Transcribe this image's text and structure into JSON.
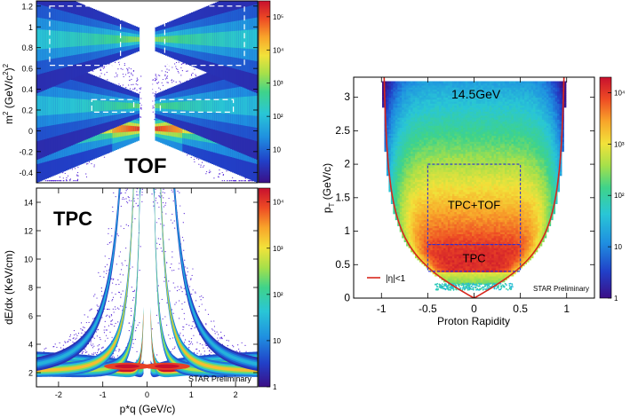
{
  "chart_data": [
    {
      "id": "tof",
      "type": "heatmap",
      "title": "",
      "panel_label": "TOF",
      "xlabel": "",
      "ylabel": "m² (GeV/c²)²",
      "ylabel_main": "m",
      "ylabel_sup": "2",
      "ylabel_unit": " (GeV/c",
      "ylabel_unit_sup": "2",
      "ylabel_close": ")",
      "ylabel_close_sup": "2",
      "xlim": [
        -2.5,
        2.5
      ],
      "ylim": [
        -0.5,
        1.25
      ],
      "yticks": [
        {
          "value": -0.4,
          "label": "-0.4"
        },
        {
          "value": -0.2,
          "label": "-0.2"
        },
        {
          "value": 0,
          "label": "0"
        },
        {
          "value": 0.2,
          "label": "0.2"
        },
        {
          "value": 0.4,
          "label": "0.4"
        },
        {
          "value": 0.6,
          "label": "0.6"
        },
        {
          "value": 0.8,
          "label": "0.8"
        },
        {
          "value": 1.0,
          "label": "1"
        },
        {
          "value": 1.2,
          "label": "1.2"
        }
      ],
      "bands": [
        {
          "name": "pion",
          "m2": 0.02,
          "intensity": 1.0
        },
        {
          "name": "kaon",
          "m2": 0.24,
          "intensity": 0.65
        },
        {
          "name": "proton",
          "m2": 0.88,
          "intensity": 0.7
        }
      ],
      "selection_boxes": [
        {
          "x": [
            -2.2,
            -0.6
          ],
          "y": [
            0.63,
            1.2
          ]
        },
        {
          "x": [
            0.4,
            2.2
          ],
          "y": [
            0.63,
            1.2
          ]
        },
        {
          "x": [
            -1.25,
            -0.3
          ],
          "y": [
            0.18,
            0.3
          ]
        },
        {
          "x": [
            0.3,
            1.95
          ],
          "y": [
            0.18,
            0.3
          ]
        }
      ],
      "colorbar": {
        "scale": "log",
        "ticks": [
          {
            "value": 10,
            "label": "10"
          },
          {
            "value": 100,
            "label": "10²"
          },
          {
            "value": 1000,
            "label": "10³"
          },
          {
            "value": 10000,
            "label": "10⁴"
          },
          {
            "value": 100000,
            "label": "10⁵"
          }
        ],
        "range": [
          1,
          300000
        ]
      }
    },
    {
      "id": "tpc",
      "type": "heatmap",
      "title": "",
      "panel_label": "TPC",
      "xlabel": "p*q (GeV/c)",
      "ylabel": "dE/dx (KeV/cm)",
      "xlim": [
        -2.5,
        2.5
      ],
      "ylim": [
        1,
        15
      ],
      "xticks": [
        {
          "value": -2,
          "label": "-2"
        },
        {
          "value": -1,
          "label": "-1"
        },
        {
          "value": 0,
          "label": "0"
        },
        {
          "value": 1,
          "label": "1"
        },
        {
          "value": 2,
          "label": "2"
        }
      ],
      "yticks": [
        {
          "value": 2,
          "label": "2"
        },
        {
          "value": 4,
          "label": "4"
        },
        {
          "value": 6,
          "label": "6"
        },
        {
          "value": 8,
          "label": "8"
        },
        {
          "value": 10,
          "label": "10"
        },
        {
          "value": 12,
          "label": "12"
        },
        {
          "value": 14,
          "label": "14"
        }
      ],
      "bands": [
        {
          "name": "electron",
          "mass": 0.05,
          "intensity": 0.55
        },
        {
          "name": "pion",
          "mass": 0.14,
          "intensity": 1.0
        },
        {
          "name": "kaon",
          "mass": 0.49,
          "intensity": 0.65
        },
        {
          "name": "proton",
          "mass": 0.94,
          "intensity": 0.8
        },
        {
          "name": "deuteron",
          "mass": 1.88,
          "intensity": 0.35
        }
      ],
      "watermark": "STAR Preliminary",
      "colorbar": {
        "scale": "log",
        "ticks": [
          {
            "value": 1,
            "label": "1"
          },
          {
            "value": 10,
            "label": "10"
          },
          {
            "value": 100,
            "label": "10²"
          },
          {
            "value": 1000,
            "label": "10³"
          },
          {
            "value": 10000,
            "label": "10⁴"
          }
        ],
        "range": [
          1,
          20000
        ]
      }
    },
    {
      "id": "acceptance",
      "type": "heatmap",
      "title": "",
      "energy_label": "14.5GeV",
      "xlabel": "Proton Rapidity",
      "ylabel": "pT (GeV/c)",
      "ylabel_main": "p",
      "ylabel_sub": "T",
      "ylabel_unit": " (GeV/c)",
      "xlim": [
        -1.3,
        1.3
      ],
      "ylim": [
        0,
        3.3
      ],
      "xticks": [
        {
          "value": -1,
          "label": "-1"
        },
        {
          "value": -0.5,
          "label": "-0.5"
        },
        {
          "value": 0,
          "label": "0"
        },
        {
          "value": 0.5,
          "label": "0.5"
        },
        {
          "value": 1,
          "label": "1"
        }
      ],
      "yticks": [
        {
          "value": 0,
          "label": "0"
        },
        {
          "value": 0.5,
          "label": "0.5"
        },
        {
          "value": 1,
          "label": "1"
        },
        {
          "value": 1.5,
          "label": "1.5"
        },
        {
          "value": 2,
          "label": "2"
        },
        {
          "value": 2.5,
          "label": "2.5"
        },
        {
          "value": 3,
          "label": "3"
        }
      ],
      "boxes": [
        {
          "label": "TPC+TOF",
          "x": [
            -0.5,
            0.5
          ],
          "y": [
            0.8,
            2.0
          ]
        },
        {
          "label": "TPC",
          "x": [
            -0.5,
            0.5
          ],
          "y": [
            0.4,
            0.8
          ]
        }
      ],
      "eta_curve": {
        "label": "|η|<1",
        "eta": 1.0,
        "mass": 0.938
      },
      "legend": {
        "label": "|η|<1",
        "placement": "bottom-left"
      },
      "watermark": "STAR Preliminary",
      "colorbar": {
        "scale": "log",
        "ticks": [
          {
            "value": 1,
            "label": "1"
          },
          {
            "value": 10,
            "label": "10"
          },
          {
            "value": 100,
            "label": "10²"
          },
          {
            "value": 1000,
            "label": "10³"
          },
          {
            "value": 10000,
            "label": "10⁴"
          }
        ],
        "range": [
          1,
          20000
        ]
      }
    }
  ]
}
